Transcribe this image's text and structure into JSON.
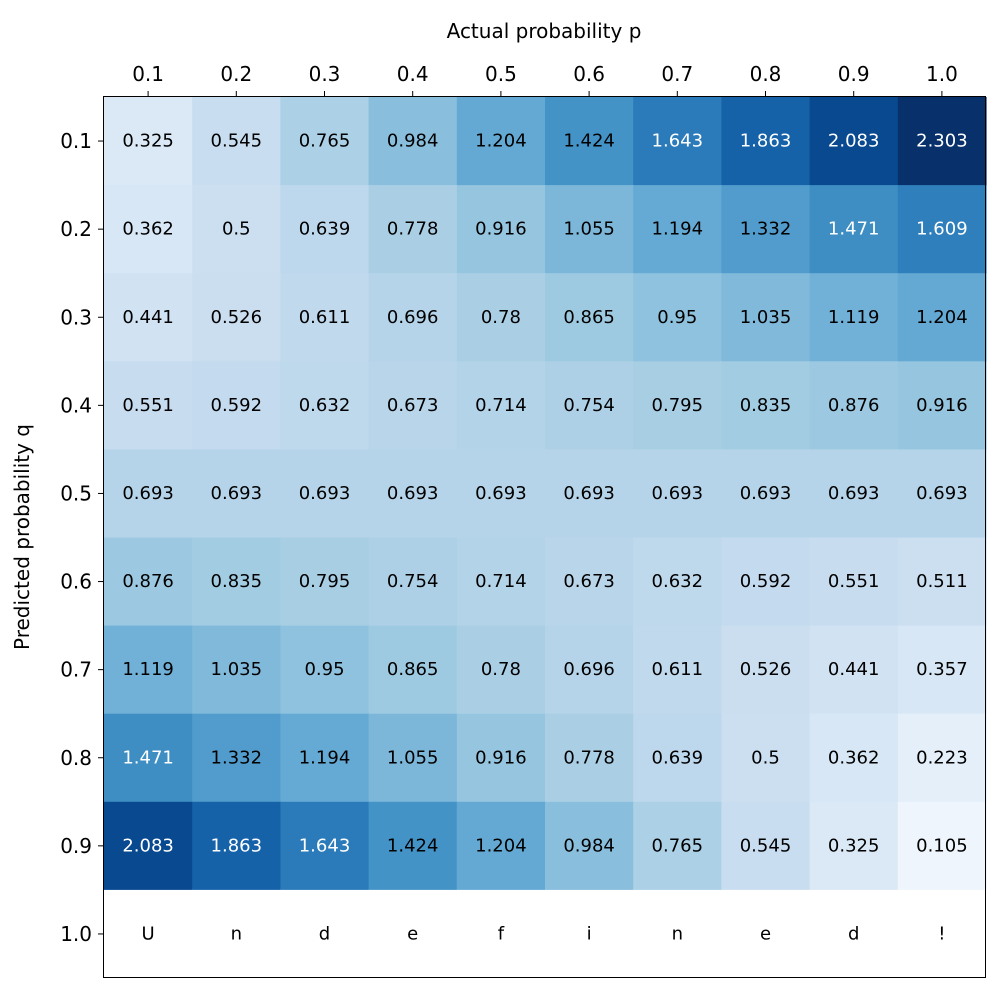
{
  "chart_data": {
    "type": "heatmap",
    "xlabel": "Actual probability p",
    "ylabel": "Predicted probability q",
    "x_ticks": [
      "0.1",
      "0.2",
      "0.3",
      "0.4",
      "0.5",
      "0.6",
      "0.7",
      "0.8",
      "0.9",
      "1.0"
    ],
    "y_ticks": [
      "0.1",
      "0.2",
      "0.3",
      "0.4",
      "0.5",
      "0.6",
      "0.7",
      "0.8",
      "0.9",
      "1.0"
    ],
    "x_axis_position": "top",
    "colormap": "Blues",
    "vmin": 0,
    "vmax": 2.303,
    "grid": false,
    "values": [
      [
        0.325,
        0.545,
        0.765,
        0.984,
        1.204,
        1.424,
        1.643,
        1.863,
        2.083,
        2.303
      ],
      [
        0.362,
        0.5,
        0.639,
        0.778,
        0.916,
        1.055,
        1.194,
        1.332,
        1.471,
        1.609
      ],
      [
        0.441,
        0.526,
        0.611,
        0.696,
        0.78,
        0.865,
        0.95,
        1.035,
        1.119,
        1.204
      ],
      [
        0.551,
        0.592,
        0.632,
        0.673,
        0.714,
        0.754,
        0.795,
        0.835,
        0.876,
        0.916
      ],
      [
        0.693,
        0.693,
        0.693,
        0.693,
        0.693,
        0.693,
        0.693,
        0.693,
        0.693,
        0.693
      ],
      [
        0.876,
        0.835,
        0.795,
        0.754,
        0.714,
        0.673,
        0.632,
        0.592,
        0.551,
        0.511
      ],
      [
        1.119,
        1.035,
        0.95,
        0.865,
        0.78,
        0.696,
        0.611,
        0.526,
        0.441,
        0.357
      ],
      [
        1.471,
        1.332,
        1.194,
        1.055,
        0.916,
        0.778,
        0.639,
        0.5,
        0.362,
        0.223
      ],
      [
        2.083,
        1.863,
        1.643,
        1.424,
        1.204,
        0.984,
        0.765,
        0.545,
        0.325,
        0.105
      ],
      [
        null,
        null,
        null,
        null,
        null,
        null,
        null,
        null,
        null,
        null
      ]
    ],
    "cell_labels": [
      [
        "0.325",
        "0.545",
        "0.765",
        "0.984",
        "1.204",
        "1.424",
        "1.643",
        "1.863",
        "2.083",
        "2.303"
      ],
      [
        "0.362",
        "0.5",
        "0.639",
        "0.778",
        "0.916",
        "1.055",
        "1.194",
        "1.332",
        "1.471",
        "1.609"
      ],
      [
        "0.441",
        "0.526",
        "0.611",
        "0.696",
        "0.78",
        "0.865",
        "0.95",
        "1.035",
        "1.119",
        "1.204"
      ],
      [
        "0.551",
        "0.592",
        "0.632",
        "0.673",
        "0.714",
        "0.754",
        "0.795",
        "0.835",
        "0.876",
        "0.916"
      ],
      [
        "0.693",
        "0.693",
        "0.693",
        "0.693",
        "0.693",
        "0.693",
        "0.693",
        "0.693",
        "0.693",
        "0.693"
      ],
      [
        "0.876",
        "0.835",
        "0.795",
        "0.754",
        "0.714",
        "0.673",
        "0.632",
        "0.592",
        "0.551",
        "0.511"
      ],
      [
        "1.119",
        "1.035",
        "0.95",
        "0.865",
        "0.78",
        "0.696",
        "0.611",
        "0.526",
        "0.441",
        "0.357"
      ],
      [
        "1.471",
        "1.332",
        "1.194",
        "1.055",
        "0.916",
        "0.778",
        "0.639",
        "0.5",
        "0.362",
        "0.223"
      ],
      [
        "2.083",
        "1.863",
        "1.643",
        "1.424",
        "1.204",
        "0.984",
        "0.765",
        "0.545",
        "0.325",
        "0.105"
      ],
      [
        "U",
        "n",
        "d",
        "e",
        "f",
        "i",
        "n",
        "e",
        "d",
        "!"
      ]
    ]
  }
}
